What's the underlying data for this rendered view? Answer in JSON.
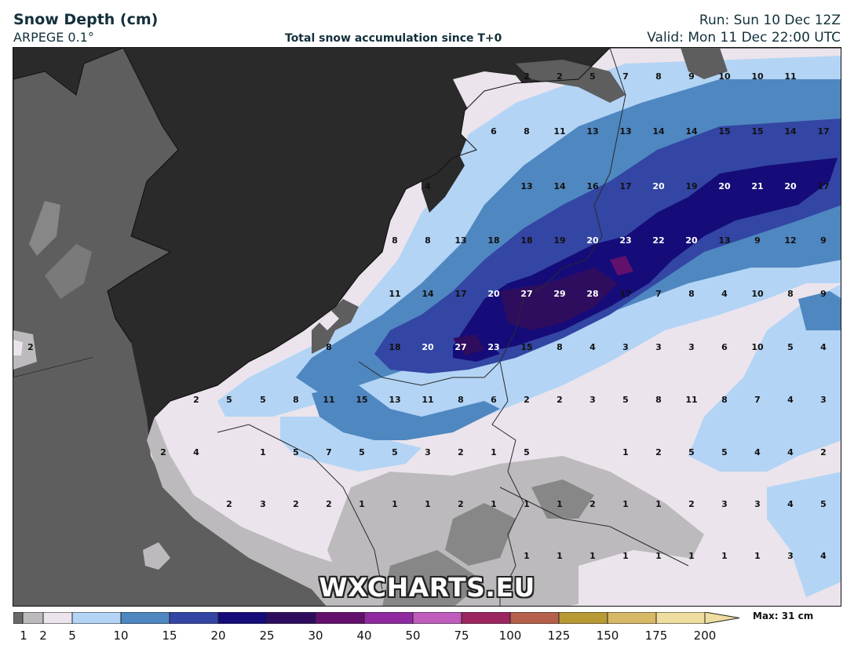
{
  "header": {
    "title": "Snow Depth (cm)",
    "model": "ARPEGE 0.1°",
    "subtitle": "Total snow accumulation since T+0",
    "run": "Run: Sun 10 Dec 12Z",
    "valid": "Valid: Mon 11 Dec 22:00 UTC"
  },
  "watermark": "WXCHARTS.EU",
  "legend": {
    "max_label": "Max: 31 cm",
    "tick_labels": [
      "1",
      "2",
      "5",
      "10",
      "15",
      "20",
      "25",
      "30",
      "40",
      "50",
      "75",
      "100",
      "125",
      "150",
      "175",
      "200"
    ],
    "colors": [
      "#686868",
      "#bdbabd",
      "#ebe4ec",
      "#b3d4f5",
      "#4f87c0",
      "#3346a4",
      "#150c7a",
      "#2e0d5e",
      "#63106d",
      "#8f2aa0",
      "#bf5cbc",
      "#9b2660",
      "#b5604a",
      "#b89a35",
      "#d7b867",
      "#efdda0"
    ]
  },
  "map_values": [
    {
      "row": 1,
      "values": [
        "2",
        "2",
        "5",
        "7",
        "8",
        "9",
        "10",
        "10",
        "11"
      ]
    },
    {
      "row": 2,
      "values": [
        "6",
        "8",
        "11",
        "13",
        "13",
        "14",
        "14",
        "15",
        "15",
        "14",
        "17"
      ]
    },
    {
      "row": 3,
      "values": [
        "4",
        "13",
        "14",
        "16",
        "17",
        "20",
        "19",
        "20",
        "21",
        "20",
        "17"
      ]
    },
    {
      "row": 4,
      "values": [
        "8",
        "8",
        "13",
        "18",
        "18",
        "19",
        "20",
        "23",
        "22",
        "20",
        "13",
        "9",
        "12",
        "9"
      ]
    },
    {
      "row": 5,
      "values": [
        "11",
        "14",
        "17",
        "20",
        "27",
        "29",
        "28",
        "17",
        "7",
        "8",
        "4",
        "10",
        "8",
        "9"
      ]
    },
    {
      "row": 6,
      "values": [
        "2",
        "8",
        "18",
        "20",
        "27",
        "23",
        "15",
        "8",
        "4",
        "3",
        "3",
        "3",
        "6",
        "10",
        "5",
        "4"
      ]
    },
    {
      "row": 7,
      "values": [
        "2",
        "5",
        "5",
        "8",
        "11",
        "15",
        "13",
        "11",
        "8",
        "6",
        "2",
        "2",
        "3",
        "5",
        "8",
        "11",
        "8",
        "7",
        "4",
        "3"
      ]
    },
    {
      "row": 8,
      "values": [
        "2",
        "4",
        "1",
        "5",
        "7",
        "5",
        "5",
        "3",
        "2",
        "1",
        "5",
        "1",
        "2",
        "5",
        "5",
        "4",
        "4",
        "2"
      ]
    },
    {
      "row": 9,
      "values": [
        "2",
        "3",
        "2",
        "2",
        "1",
        "1",
        "1",
        "2",
        "1",
        "1",
        "1",
        "2",
        "1",
        "1",
        "2",
        "3",
        "3",
        "4",
        "5"
      ]
    },
    {
      "row": 10,
      "values": [
        "1",
        "1",
        "1",
        "1",
        "1",
        "1",
        "1",
        "1",
        "3",
        "4"
      ]
    }
  ]
}
